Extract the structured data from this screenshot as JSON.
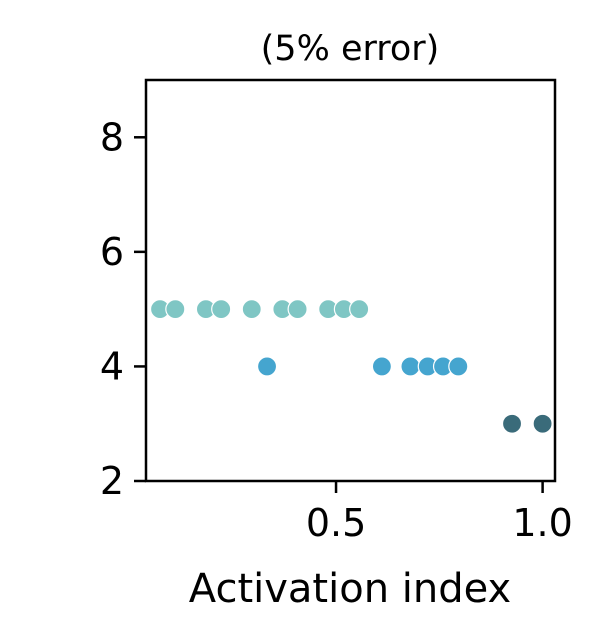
{
  "chart_data": {
    "type": "scatter",
    "title": "(5% error)",
    "xlabel": "Activation index",
    "ylabel": "",
    "xlim": [
      0.04,
      1.03
    ],
    "ylim": [
      2,
      9
    ],
    "xticks": [
      0.5,
      1.0
    ],
    "xtick_labels": [
      "0.5",
      "1.0"
    ],
    "yticks": [
      2,
      4,
      6,
      8
    ],
    "ytick_labels": [
      "2",
      "4",
      "6",
      "8"
    ],
    "grid": false,
    "series": [
      {
        "color": "#7fc6c4",
        "points": [
          {
            "x": 0.074,
            "y": 5
          },
          {
            "x": 0.111,
            "y": 5
          },
          {
            "x": 0.185,
            "y": 5
          },
          {
            "x": 0.222,
            "y": 5
          },
          {
            "x": 0.296,
            "y": 5
          },
          {
            "x": 0.37,
            "y": 5
          },
          {
            "x": 0.407,
            "y": 5
          },
          {
            "x": 0.481,
            "y": 5
          },
          {
            "x": 0.519,
            "y": 5
          },
          {
            "x": 0.556,
            "y": 5
          }
        ]
      },
      {
        "color": "#45a5cf",
        "points": [
          {
            "x": 0.333,
            "y": 4
          },
          {
            "x": 0.611,
            "y": 4
          },
          {
            "x": 0.68,
            "y": 4
          },
          {
            "x": 0.722,
            "y": 4
          },
          {
            "x": 0.759,
            "y": 4
          },
          {
            "x": 0.796,
            "y": 4
          }
        ]
      },
      {
        "color": "#3a6b7a",
        "points": [
          {
            "x": 0.926,
            "y": 3
          },
          {
            "x": 1.0,
            "y": 3
          }
        ]
      }
    ]
  }
}
